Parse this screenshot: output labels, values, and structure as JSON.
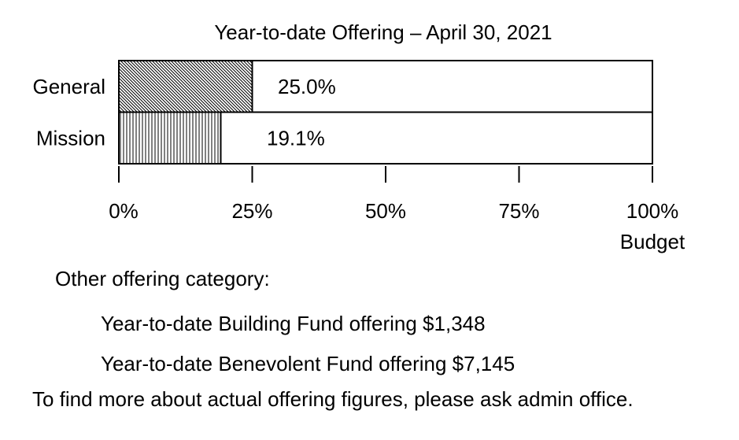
{
  "chart_data": {
    "type": "bar",
    "orientation": "horizontal",
    "title": "Year-to-date Offering – April 30, 2021",
    "categories": [
      "General",
      "Mission"
    ],
    "values": [
      25.0,
      19.1
    ],
    "value_labels": [
      "25.0%",
      "19.1%"
    ],
    "xlim": [
      0,
      100
    ],
    "xticks": [
      0,
      25,
      50,
      75,
      100
    ],
    "xtick_labels": [
      "0%",
      "25%",
      "50%",
      "75%",
      "100%"
    ],
    "xlabel": "Budget",
    "grid": false
  },
  "notes": {
    "heading": "Other offering category:",
    "building": "Year-to-date Building Fund offering $1,348",
    "benevolent": "Year-to-date Benevolent Fund offering $7,145",
    "footer": "To find more about actual offering figures, please ask admin office."
  }
}
